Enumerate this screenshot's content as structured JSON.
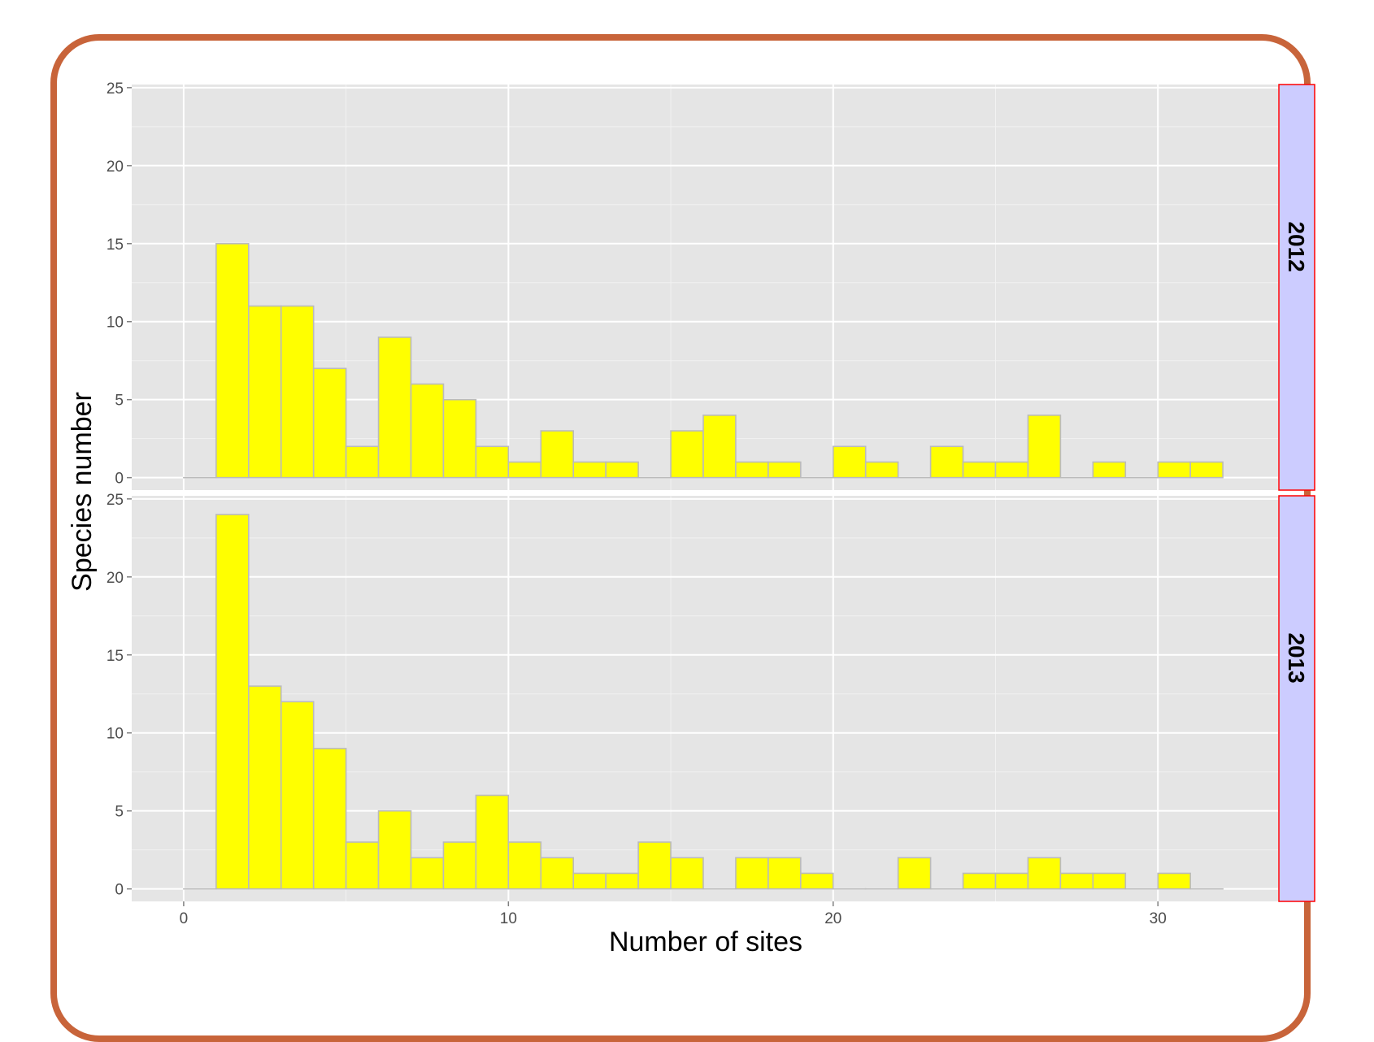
{
  "chart_data": {
    "type": "bar",
    "xlabel": "Number of sites",
    "ylabel": "Species number",
    "xlim": [
      -1.6,
      33.7
    ],
    "ylim": [
      -0.8,
      25.2
    ],
    "x_ticks": [
      0,
      10,
      20,
      30
    ],
    "y_ticks": [
      0,
      5,
      10,
      15,
      20,
      25
    ],
    "bin_width": 1,
    "bin_start": 0,
    "colors": {
      "fill": "#ffff00",
      "outline": "#bbbbbb",
      "panel": "#e5e5e5",
      "grid": "#ffffff",
      "strip_fill": "#ccccff",
      "strip_border": "#ff0000",
      "frame": "#c8643a"
    },
    "facets": [
      {
        "label": "2012",
        "values": [
          0,
          15,
          11,
          11,
          7,
          2,
          9,
          6,
          5,
          2,
          1,
          3,
          1,
          1,
          0,
          3,
          4,
          1,
          1,
          0,
          2,
          1,
          0,
          2,
          1,
          1,
          4,
          0,
          1,
          0,
          1,
          1
        ]
      },
      {
        "label": "2013",
        "values": [
          0,
          24,
          13,
          12,
          9,
          3,
          5,
          2,
          3,
          6,
          3,
          2,
          1,
          1,
          3,
          2,
          0,
          2,
          2,
          1,
          0,
          0,
          2,
          0,
          1,
          1,
          2,
          1,
          1,
          0,
          1,
          0
        ]
      }
    ]
  }
}
